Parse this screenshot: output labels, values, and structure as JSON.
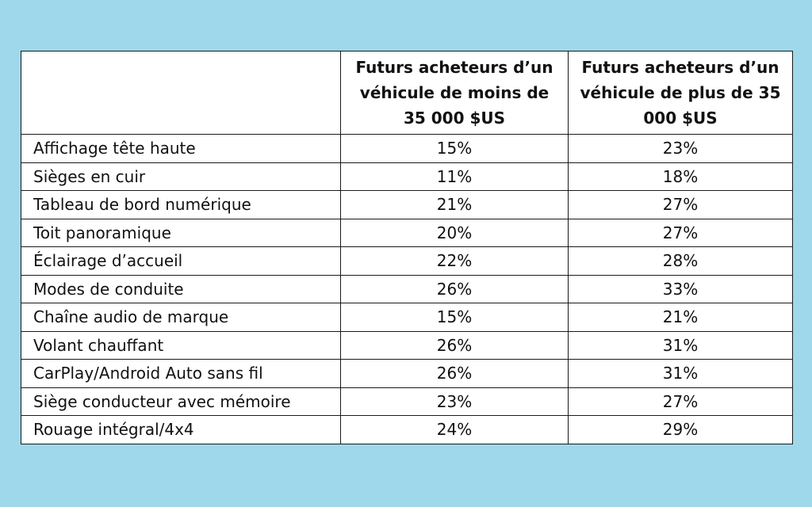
{
  "table": {
    "headers": [
      "",
      "Futurs acheteurs d’un véhicule de moins de 35 000 $US",
      "Futurs acheteurs d’un véhicule de plus de 35 000 $US"
    ],
    "rows": [
      {
        "feature": "Affichage tête haute",
        "under_35k": "15%",
        "over_35k": "23%"
      },
      {
        "feature": "Sièges en cuir",
        "under_35k": "11%",
        "over_35k": "18%"
      },
      {
        "feature": "Tableau de bord numérique",
        "under_35k": "21%",
        "over_35k": "27%"
      },
      {
        "feature": "Toit panoramique",
        "under_35k": "20%",
        "over_35k": "27%"
      },
      {
        "feature": "Éclairage d’accueil",
        "under_35k": "22%",
        "over_35k": "28%"
      },
      {
        "feature": "Modes de conduite",
        "under_35k": "26%",
        "over_35k": "33%"
      },
      {
        "feature": "Chaîne audio de marque",
        "under_35k": "15%",
        "over_35k": "21%"
      },
      {
        "feature": "Volant chauffant",
        "under_35k": "26%",
        "over_35k": "31%"
      },
      {
        "feature": "CarPlay/Android Auto sans fil",
        "under_35k": "26%",
        "over_35k": "31%"
      },
      {
        "feature": "Siège conducteur avec mémoire",
        "under_35k": "23%",
        "over_35k": "27%"
      },
      {
        "feature": "Rouage intégral/4x4",
        "under_35k": "24%",
        "over_35k": "29%"
      }
    ]
  },
  "colors": {
    "background": "#9fd8ea",
    "table_background": "#ffffff",
    "border": "#1a1a1a"
  }
}
